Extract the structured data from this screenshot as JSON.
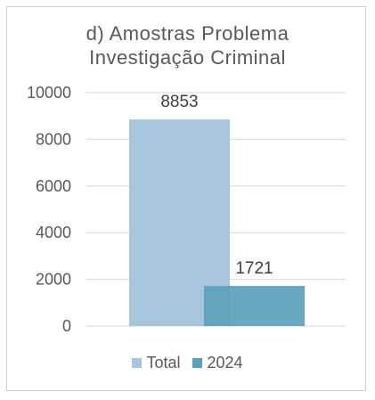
{
  "chart_data": {
    "type": "bar",
    "title": [
      "d) Amostras Problema",
      "Investigação Criminal"
    ],
    "categories": [
      ""
    ],
    "series": [
      {
        "name": "Total",
        "values": [
          8853
        ],
        "color": "#a8c6db"
      },
      {
        "name": "2024",
        "values": [
          1721
        ],
        "color": "#5a9fba"
      }
    ],
    "data_labels": [
      "8853",
      "1721"
    ],
    "ylim": [
      0,
      10000
    ],
    "yticks": [
      0,
      2000,
      4000,
      6000,
      8000,
      10000
    ],
    "ytick_labels": [
      "0",
      "2000",
      "4000",
      "6000",
      "8000",
      "10000"
    ],
    "grid": true,
    "legend_position": "bottom",
    "bars_overlap": true
  }
}
